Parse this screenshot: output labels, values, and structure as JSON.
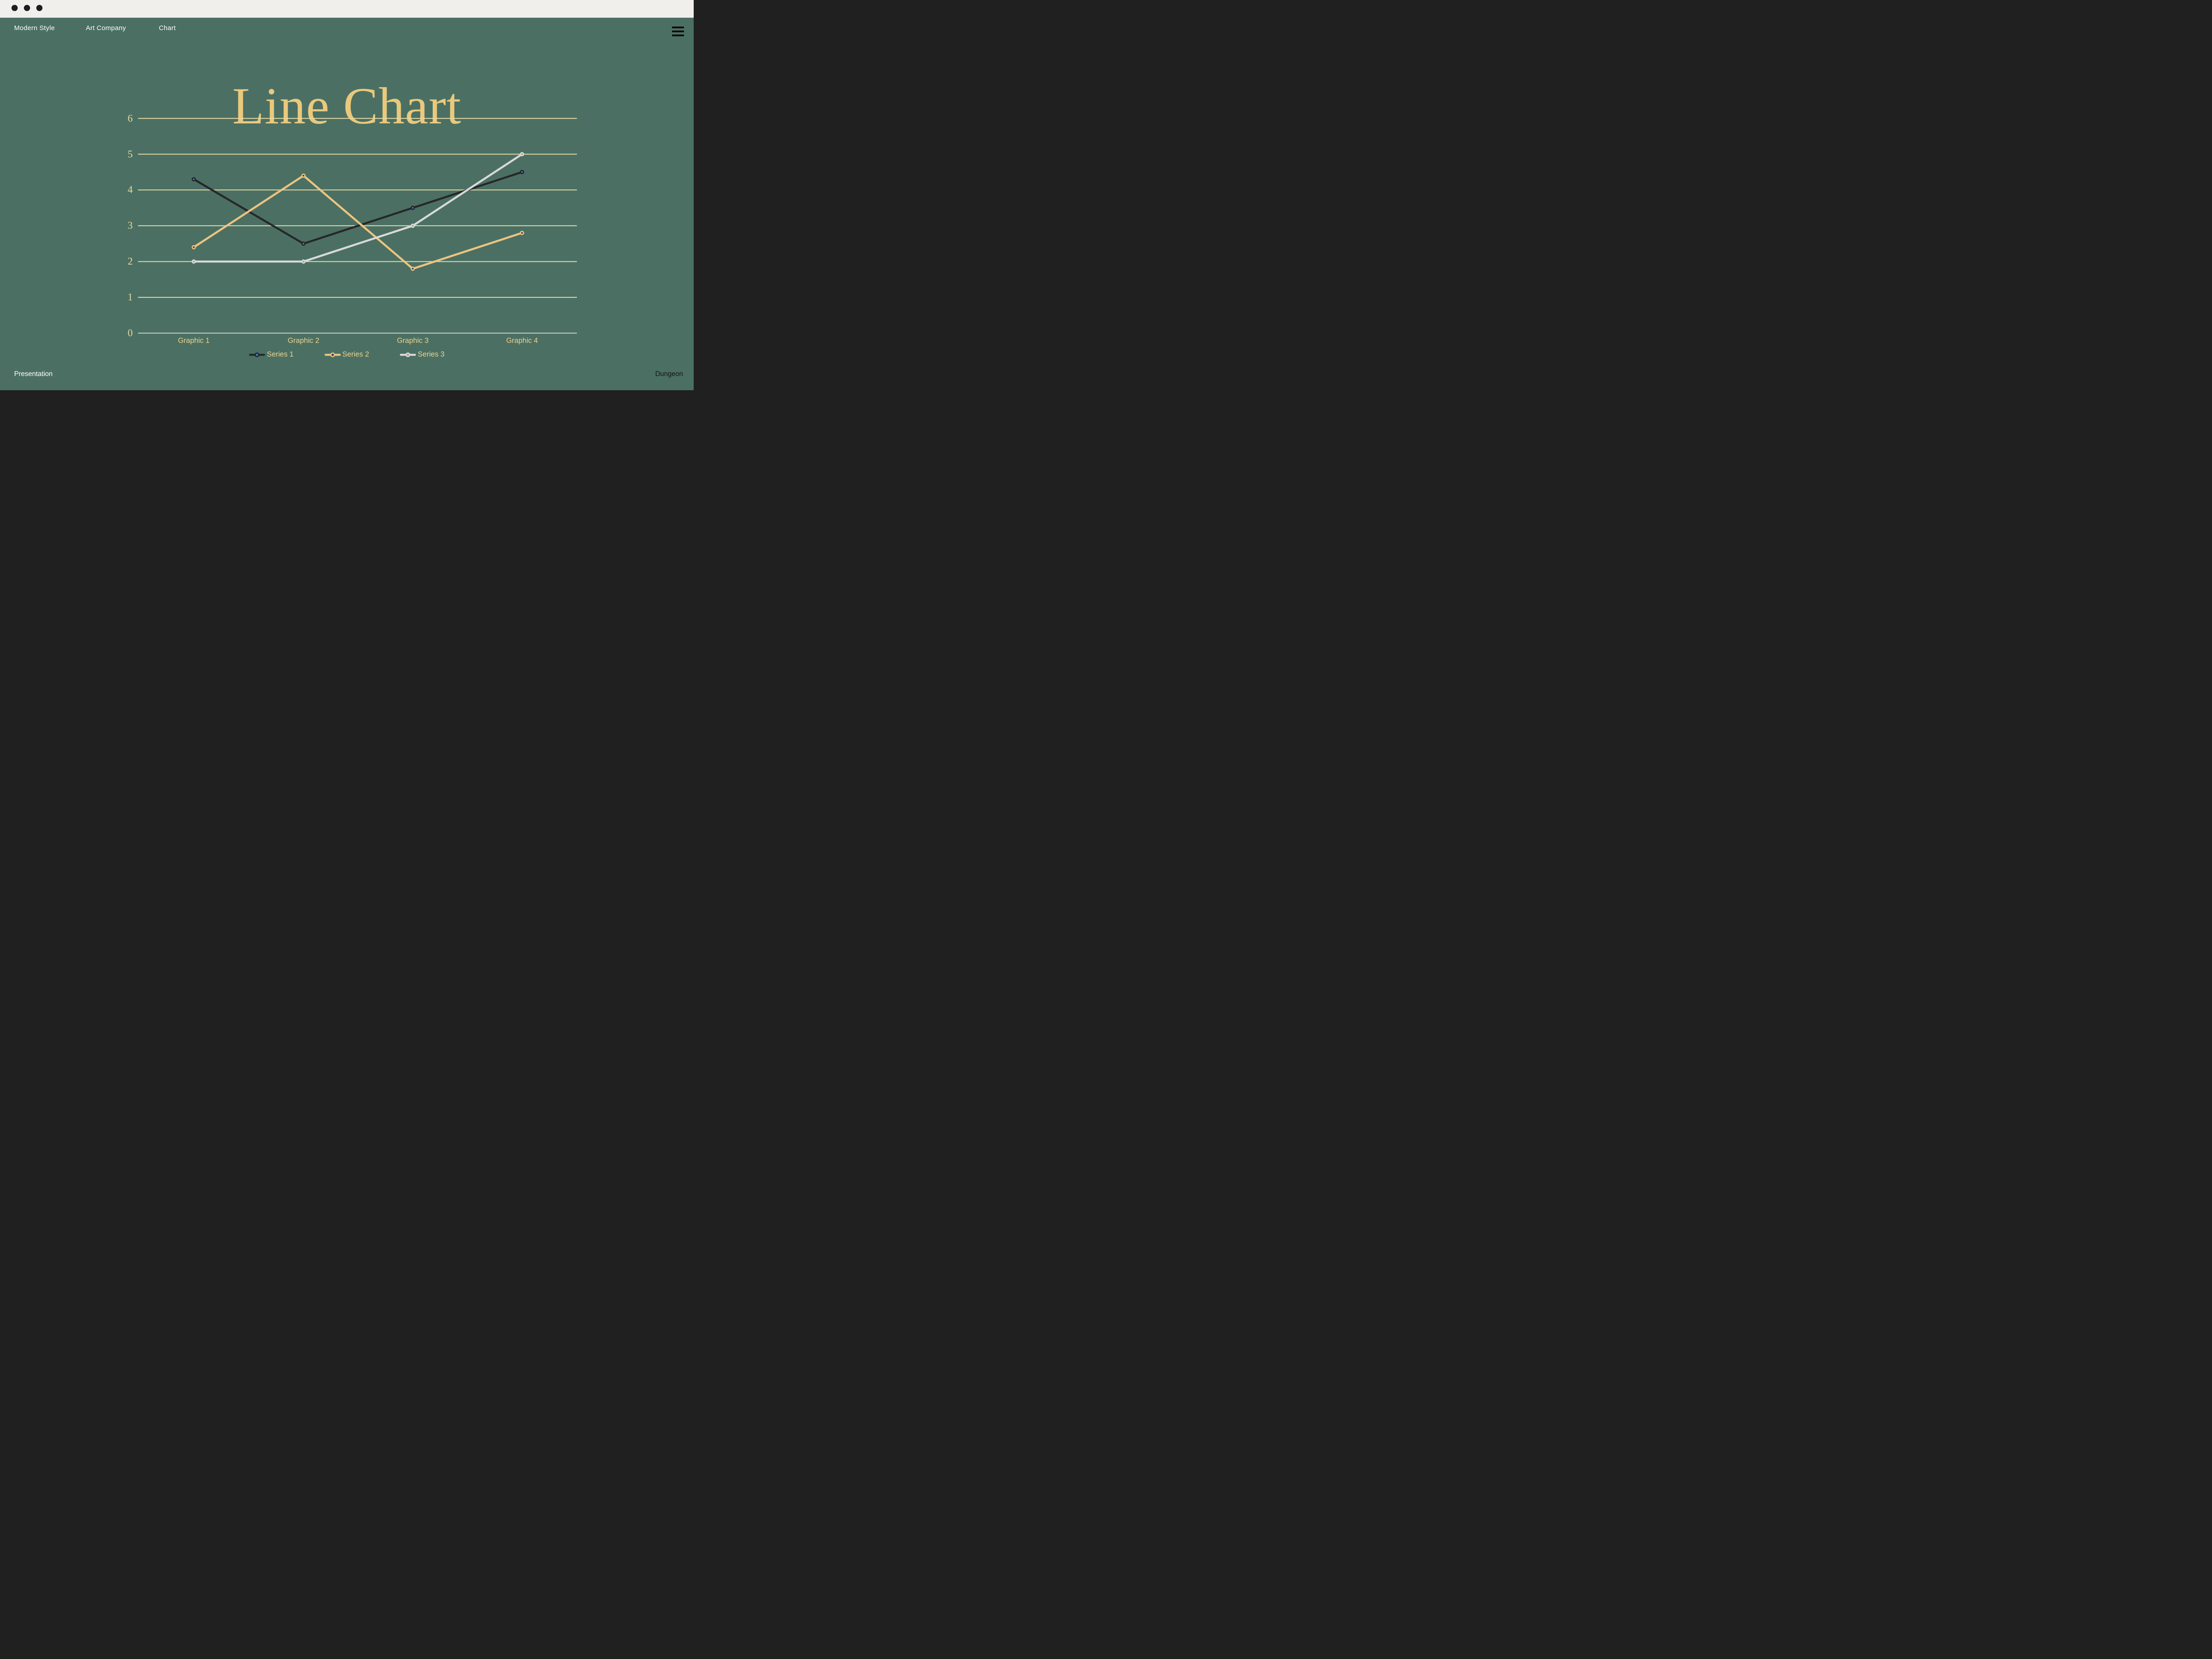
{
  "window": {
    "controls": [
      "window-dot",
      "window-dot",
      "window-dot"
    ]
  },
  "navbar": {
    "items": [
      {
        "label": "Modern Style"
      },
      {
        "label": "Art Company"
      },
      {
        "label": "Chart"
      }
    ],
    "menu_icon": "hamburger-icon"
  },
  "title": {
    "text": "Line Chart"
  },
  "footer": {
    "left": "Presentation",
    "right": "Dungeon"
  },
  "colors": {
    "background": "#4b7063",
    "titlebar": "#f0efec",
    "title_text": "#eac97c",
    "axis_label_text": "#e9d7a0",
    "category_label_text": "#ecd28f",
    "nav_text": "#ffffff",
    "footer_left_text": "#ffffff",
    "footer_right_text": "#121212"
  },
  "chart_data": {
    "type": "line",
    "title": "Line Chart",
    "categories": [
      "Graphic 1",
      "Graphic 2",
      "Graphic 3",
      "Graphic 4"
    ],
    "series": [
      {
        "name": "Series 1",
        "values": [
          4.3,
          2.5,
          3.5,
          4.5
        ],
        "line_color": "#27272a",
        "marker_fill": "#4377d6",
        "marker_stroke": "#232325"
      },
      {
        "name": "Series 2",
        "values": [
          2.4,
          4.4,
          1.8,
          2.8
        ],
        "line_color": "#edc480",
        "marker_fill": "#44395f",
        "marker_stroke": "#edc480"
      },
      {
        "name": "Series 3",
        "values": [
          2.0,
          2.0,
          3.0,
          5.0
        ],
        "line_color": "#d9d9d9",
        "marker_fill": "#a3a3a3",
        "marker_stroke": "#d9d9d9"
      }
    ],
    "xlabel": "",
    "ylabel": "",
    "ylim": [
      0,
      6
    ],
    "yticks": [
      0,
      1,
      2,
      3,
      4,
      5,
      6
    ],
    "grid": true,
    "gridline_color": "#e9d9a4",
    "axis_zero_color": "#c9ccd3",
    "legend_position": "bottom"
  }
}
